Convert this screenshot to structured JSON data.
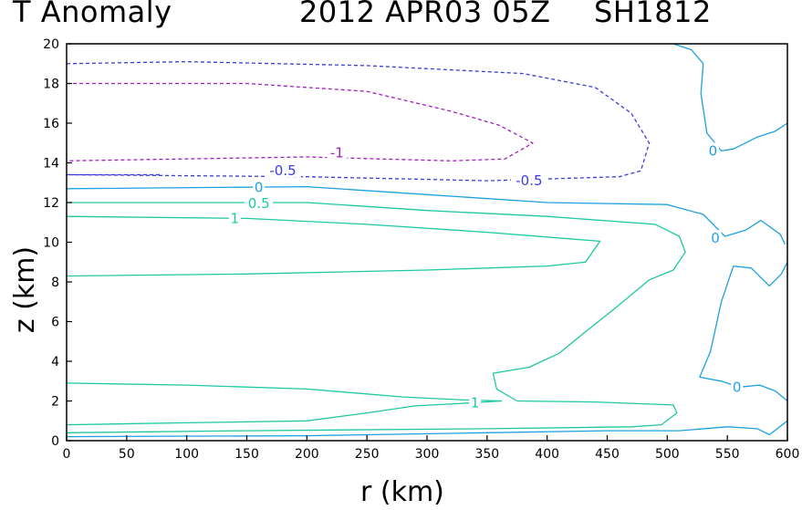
{
  "chart_data": {
    "type": "contour",
    "title_left": "T Anomaly",
    "title_mid": "2012 APR03 05Z",
    "title_right": "SH1812",
    "xlabel": "r (km)",
    "ylabel": "z (km)",
    "xlim": [
      0,
      600
    ],
    "ylim": [
      0,
      20
    ],
    "xticks": [
      0,
      50,
      100,
      150,
      200,
      250,
      300,
      350,
      400,
      450,
      500,
      550,
      600
    ],
    "yticks": [
      0,
      2,
      4,
      6,
      8,
      10,
      12,
      14,
      16,
      18,
      20
    ],
    "colors": {
      "neg1": "#a020c0",
      "neg05": "#3c3cdc",
      "zero": "#1ea0e0",
      "pos": "#1ec8a0"
    },
    "contours": [
      {
        "level": -0.5,
        "style": "dashed",
        "color": "#3c3cdc",
        "points": [
          [
            0,
            19
          ],
          [
            100,
            19.1
          ],
          [
            250,
            18.9
          ],
          [
            380,
            18.5
          ],
          [
            440,
            17.8
          ],
          [
            470,
            16.5
          ],
          [
            485,
            15
          ],
          [
            478,
            13.6
          ],
          [
            460,
            13.3
          ],
          [
            350,
            13.1
          ],
          [
            200,
            13.3
          ],
          [
            0,
            13.4
          ]
        ]
      },
      {
        "level": -0.5,
        "style": "dashed",
        "color": "#3c3cdc",
        "points": [
          [
            0,
            13.4
          ],
          [
            80,
            13.4
          ]
        ]
      },
      {
        "level": -1,
        "style": "dashed",
        "color": "#a020c0",
        "points": [
          [
            0,
            18
          ],
          [
            150,
            18
          ],
          [
            250,
            17.6
          ],
          [
            320,
            16.6
          ],
          [
            360,
            15.9
          ],
          [
            388,
            15
          ],
          [
            365,
            14.2
          ],
          [
            320,
            14.1
          ],
          [
            200,
            14.3
          ],
          [
            0,
            14.1
          ]
        ]
      },
      {
        "level": 0,
        "style": "solid",
        "color": "#1ea0e0",
        "points": [
          [
            0,
            12.7
          ],
          [
            200,
            12.8
          ],
          [
            300,
            12.4
          ],
          [
            400,
            12
          ],
          [
            500,
            11.9
          ],
          [
            530,
            11.4
          ],
          [
            548,
            10.3
          ],
          [
            565,
            10.6
          ],
          [
            578,
            11.1
          ],
          [
            594,
            10.4
          ],
          [
            598,
            9.9
          ]
        ]
      },
      {
        "level": 0,
        "style": "solid",
        "color": "#1ea0e0",
        "points": [
          [
            600,
            16
          ],
          [
            590,
            15.6
          ],
          [
            575,
            15.3
          ],
          [
            555,
            14.7
          ],
          [
            545,
            14.6
          ],
          [
            533,
            15.5
          ],
          [
            528,
            17.5
          ],
          [
            530,
            19
          ],
          [
            520,
            19.7
          ],
          [
            505,
            20
          ]
        ]
      },
      {
        "level": 0,
        "style": "solid",
        "color": "#1ea0e0",
        "points": [
          [
            600,
            9
          ],
          [
            595,
            8.4
          ],
          [
            585,
            7.8
          ],
          [
            570,
            8.7
          ],
          [
            555,
            8.8
          ],
          [
            545,
            7
          ],
          [
            536,
            4.5
          ],
          [
            527,
            3.2
          ],
          [
            545,
            3
          ],
          [
            560,
            2.7
          ],
          [
            577,
            2.8
          ],
          [
            590,
            2.5
          ],
          [
            600,
            2
          ]
        ]
      },
      {
        "level": 0,
        "style": "solid",
        "color": "#1ea0e0",
        "points": [
          [
            0,
            0.2
          ],
          [
            200,
            0.25
          ],
          [
            350,
            0.4
          ],
          [
            450,
            0.5
          ],
          [
            510,
            0.5
          ],
          [
            550,
            0.7
          ],
          [
            575,
            0.6
          ],
          [
            585,
            0.3
          ],
          [
            600,
            1
          ]
        ]
      },
      {
        "level": 0.5,
        "style": "solid",
        "color": "#1ec8a0",
        "points": [
          [
            0,
            12
          ],
          [
            200,
            12
          ],
          [
            300,
            11.6
          ],
          [
            400,
            11.3
          ],
          [
            490,
            10.9
          ],
          [
            510,
            10.3
          ],
          [
            515,
            9.5
          ],
          [
            505,
            8.6
          ],
          [
            485,
            8.1
          ],
          [
            455,
            6.6
          ],
          [
            430,
            5.4
          ],
          [
            410,
            4.4
          ],
          [
            385,
            3.7
          ],
          [
            355,
            3.4
          ],
          [
            358,
            2.6
          ],
          [
            375,
            2
          ],
          [
            440,
            1.95
          ],
          [
            505,
            1.8
          ],
          [
            508,
            1.4
          ],
          [
            495,
            0.8
          ],
          [
            470,
            0.7
          ],
          [
            350,
            0.6
          ],
          [
            150,
            0.5
          ],
          [
            0,
            0.4
          ]
        ]
      },
      {
        "level": 1,
        "style": "solid",
        "color": "#1ec8a0",
        "points": [
          [
            0,
            11.3
          ],
          [
            150,
            11.2
          ],
          [
            250,
            10.9
          ],
          [
            350,
            10.5
          ],
          [
            444,
            10.05
          ],
          [
            432,
            9
          ],
          [
            400,
            8.8
          ],
          [
            300,
            8.6
          ],
          [
            150,
            8.4
          ],
          [
            0,
            8.3
          ]
        ]
      },
      {
        "level": 1,
        "style": "solid",
        "color": "#1ec8a0",
        "points": [
          [
            0,
            2.9
          ],
          [
            100,
            2.8
          ],
          [
            200,
            2.6
          ],
          [
            280,
            2.2
          ],
          [
            332,
            2.05
          ],
          [
            362,
            2
          ],
          [
            335,
            1.9
          ],
          [
            290,
            1.75
          ],
          [
            250,
            1.4
          ],
          [
            200,
            1
          ],
          [
            100,
            0.9
          ],
          [
            0,
            0.8
          ]
        ]
      }
    ],
    "labels": [
      {
        "text": "-1",
        "x": 225,
        "y": 14.5,
        "color": "#a020c0"
      },
      {
        "text": "-0.5",
        "x": 180,
        "y": 13.6,
        "color": "#3c3cdc"
      },
      {
        "text": "-0.5",
        "x": 385,
        "y": 13.1,
        "color": "#3c3cdc"
      },
      {
        "text": "0",
        "x": 538,
        "y": 14.6,
        "color": "#1ea0e0"
      },
      {
        "text": "0",
        "x": 540,
        "y": 10.2,
        "color": "#1ea0e0"
      },
      {
        "text": "0",
        "x": 558,
        "y": 2.7,
        "color": "#1ea0e0"
      },
      {
        "text": "0",
        "x": 160,
        "y": 12.75,
        "color": "#1ea0e0"
      },
      {
        "text": "0.5",
        "x": 160,
        "y": 11.95,
        "color": "#1ec8a0"
      },
      {
        "text": "1",
        "x": 140,
        "y": 11.2,
        "color": "#1ec8a0"
      },
      {
        "text": "1",
        "x": 340,
        "y": 1.9,
        "color": "#1ec8a0"
      }
    ]
  }
}
